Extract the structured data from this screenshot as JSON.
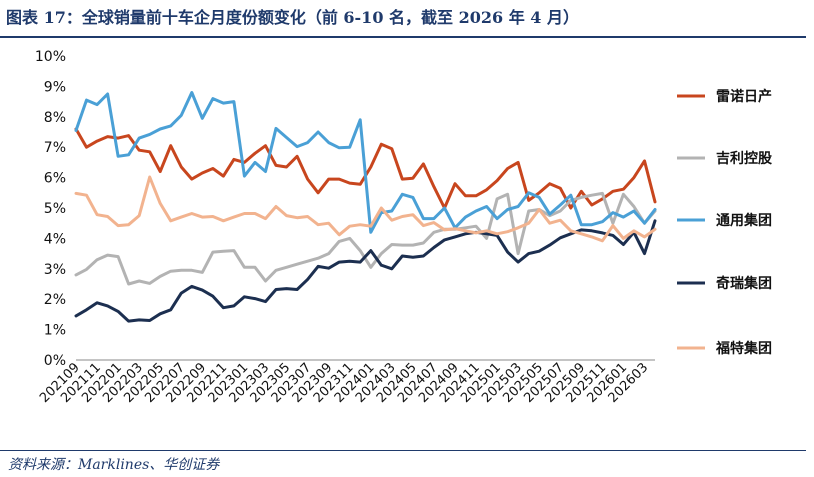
{
  "header": {
    "title": "图表 17：全球销量前十车企月度份额变化（前 6-10 名，截至 2026 年 4 月）"
  },
  "footer": {
    "source": "资料来源：Marklines、华创证券"
  },
  "chart_data": {
    "type": "line",
    "title": "",
    "xlabel": "",
    "ylabel": "",
    "ylim": [
      0,
      10
    ],
    "y_ticks": [
      "0%",
      "1%",
      "2%",
      "3%",
      "4%",
      "5%",
      "6%",
      "7%",
      "8%",
      "9%",
      "10%"
    ],
    "x_tick_labels": [
      "202109",
      "202111",
      "202201",
      "202203",
      "202205",
      "202207",
      "202209",
      "202211",
      "202301",
      "202303",
      "202305",
      "202307",
      "202309",
      "202311",
      "202401",
      "202403",
      "202405",
      "202407",
      "202409",
      "202411",
      "202501",
      "202503",
      "202505",
      "202507",
      "202509",
      "202511",
      "202601",
      "202603"
    ],
    "x": [
      "202109",
      "202110",
      "202111",
      "202112",
      "202201",
      "202202",
      "202203",
      "202204",
      "202205",
      "202206",
      "202207",
      "202208",
      "202209",
      "202210",
      "202211",
      "202212",
      "202301",
      "202302",
      "202303",
      "202304",
      "202305",
      "202306",
      "202307",
      "202308",
      "202309",
      "202310",
      "202311",
      "202312",
      "202401",
      "202402",
      "202403",
      "202404",
      "202405",
      "202406",
      "202407",
      "202408",
      "202409",
      "202410",
      "202411",
      "202412",
      "202501",
      "202502",
      "202503",
      "202504",
      "202505",
      "202506",
      "202507",
      "202508",
      "202509",
      "202510",
      "202511",
      "202512",
      "202601",
      "202602",
      "202603",
      "202604"
    ],
    "legend_position": "right",
    "series": [
      {
        "name": "雷诺日产",
        "color": "#c8461e",
        "values": [
          7.6,
          7.0,
          7.2,
          7.35,
          7.3,
          7.38,
          6.9,
          6.85,
          6.2,
          7.05,
          6.35,
          5.95,
          6.15,
          6.3,
          6.05,
          6.6,
          6.5,
          6.8,
          7.05,
          6.4,
          6.35,
          6.7,
          5.95,
          5.5,
          5.95,
          5.95,
          5.82,
          5.78,
          6.35,
          7.1,
          6.95,
          5.95,
          5.98,
          6.45,
          5.7,
          5.0,
          5.8,
          5.4,
          5.4,
          5.6,
          5.9,
          6.3,
          6.5,
          5.25,
          5.5,
          5.8,
          5.65,
          5.0,
          5.55,
          5.1,
          5.3,
          5.55,
          5.62,
          6.0,
          6.55,
          5.2
        ]
      },
      {
        "name": "吉利控股",
        "color": "#b3b3b3",
        "values": [
          2.8,
          2.98,
          3.3,
          3.45,
          3.4,
          2.5,
          2.6,
          2.52,
          2.75,
          2.92,
          2.95,
          2.95,
          2.88,
          3.55,
          3.58,
          3.6,
          3.05,
          3.05,
          2.6,
          2.95,
          3.05,
          3.15,
          3.25,
          3.35,
          3.5,
          3.9,
          4.0,
          3.6,
          3.05,
          3.5,
          3.8,
          3.78,
          3.78,
          3.85,
          4.2,
          4.3,
          4.3,
          4.35,
          4.4,
          4.0,
          5.3,
          5.45,
          3.5,
          4.9,
          4.95,
          4.75,
          4.9,
          5.25,
          5.35,
          5.42,
          5.48,
          4.5,
          5.45,
          5.05,
          4.5,
          4.9
        ]
      },
      {
        "name": "通用集团",
        "color": "#4aa0d6",
        "values": [
          7.55,
          8.55,
          8.4,
          8.75,
          6.7,
          6.75,
          7.3,
          7.42,
          7.6,
          7.7,
          8.05,
          8.8,
          7.95,
          8.6,
          8.45,
          8.5,
          6.05,
          6.5,
          6.2,
          7.62,
          7.32,
          7.02,
          7.15,
          7.5,
          7.15,
          6.98,
          7.0,
          7.9,
          4.2,
          4.85,
          4.9,
          5.45,
          5.35,
          4.65,
          4.65,
          5.0,
          4.35,
          4.7,
          4.9,
          5.05,
          4.65,
          4.95,
          5.05,
          5.5,
          5.35,
          4.8,
          5.1,
          5.42,
          4.45,
          4.45,
          4.55,
          4.85,
          4.7,
          4.9,
          4.5,
          4.95
        ]
      },
      {
        "name": "奇瑞集团",
        "color": "#1c2f50",
        "values": [
          1.45,
          1.65,
          1.88,
          1.78,
          1.6,
          1.28,
          1.32,
          1.3,
          1.52,
          1.65,
          2.2,
          2.42,
          2.3,
          2.1,
          1.72,
          1.78,
          2.08,
          2.02,
          1.92,
          2.32,
          2.35,
          2.32,
          2.65,
          3.08,
          3.02,
          3.22,
          3.25,
          3.22,
          3.6,
          3.12,
          3.0,
          3.42,
          3.38,
          3.42,
          3.7,
          3.95,
          4.05,
          4.15,
          4.2,
          4.15,
          4.1,
          3.55,
          3.22,
          3.5,
          3.58,
          3.78,
          4.02,
          4.15,
          4.28,
          4.25,
          4.18,
          4.1,
          3.8,
          4.2,
          3.5,
          4.58
        ]
      },
      {
        "name": "福特集团",
        "color": "#f2b38f",
        "values": [
          5.48,
          5.42,
          4.78,
          4.72,
          4.42,
          4.45,
          4.75,
          6.02,
          5.15,
          4.58,
          4.7,
          4.82,
          4.7,
          4.72,
          4.58,
          4.7,
          4.82,
          4.82,
          4.65,
          5.05,
          4.75,
          4.68,
          4.72,
          4.45,
          4.5,
          4.12,
          4.4,
          4.45,
          4.4,
          5.0,
          4.6,
          4.72,
          4.78,
          4.42,
          4.52,
          4.28,
          4.32,
          4.25,
          4.18,
          4.25,
          4.15,
          4.22,
          4.35,
          4.5,
          4.95,
          4.5,
          4.6,
          4.25,
          4.15,
          4.05,
          3.92,
          4.42,
          4.0,
          4.25,
          4.05,
          4.3
        ]
      }
    ]
  }
}
